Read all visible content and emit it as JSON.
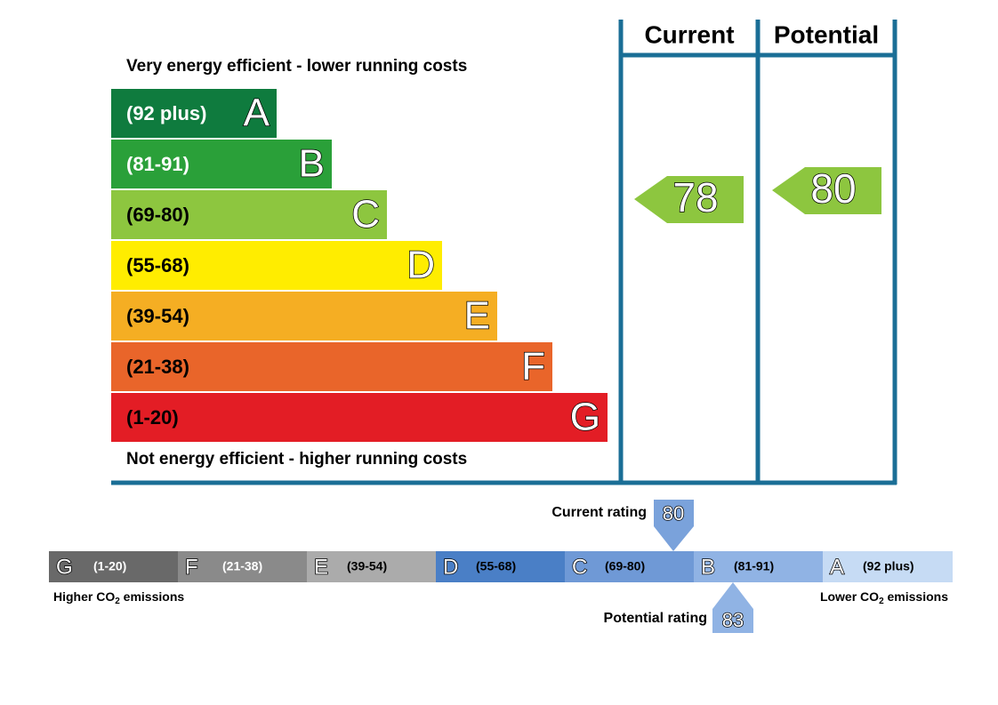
{
  "efficiency": {
    "headers": [
      "Current",
      "Potential"
    ],
    "top_text": "Very energy efficient - lower running costs",
    "bottom_text": "Not energy efficient - higher running costs",
    "bands": [
      {
        "range": "(92 plus)",
        "letter": "A",
        "color": "#0f7b3e"
      },
      {
        "range": "(81-91)",
        "letter": "B",
        "color": "#2aa039"
      },
      {
        "range": "(69-80)",
        "letter": "C",
        "color": "#8dc63f"
      },
      {
        "range": "(55-68)",
        "letter": "D",
        "color": "#ffed00"
      },
      {
        "range": "(39-54)",
        "letter": "E",
        "color": "#f5ae23"
      },
      {
        "range": "(21-38)",
        "letter": "F",
        "color": "#e9652a"
      },
      {
        "range": "(1-20)",
        "letter": "G",
        "color": "#e31d25"
      }
    ],
    "current": 78,
    "potential": 80
  },
  "emissions": {
    "bands": [
      {
        "letter": "G",
        "range": "(1-20)",
        "color": "#696969"
      },
      {
        "letter": "F",
        "range": "(21-38)",
        "color": "#8a8a8a"
      },
      {
        "letter": "E",
        "range": "(39-54)",
        "color": "#ababab"
      },
      {
        "letter": "D",
        "range": "(55-68)",
        "color": "#4a7fc6"
      },
      {
        "letter": "C",
        "range": "(69-80)",
        "color": "#6f99d6"
      },
      {
        "letter": "B",
        "range": "(81-91)",
        "color": "#90b3e4"
      },
      {
        "letter": "A",
        "range": "(92 plus)",
        "color": "#c6dbf4"
      }
    ],
    "current_label": "Current rating",
    "current": 80,
    "potential_label": "Potential rating",
    "potential": 83,
    "left_label": {
      "pre": "Higher CO",
      "sub": "2",
      "post": " emissions"
    },
    "right_label": {
      "pre": "Lower CO",
      "sub": "2",
      "post": " emissions"
    }
  }
}
